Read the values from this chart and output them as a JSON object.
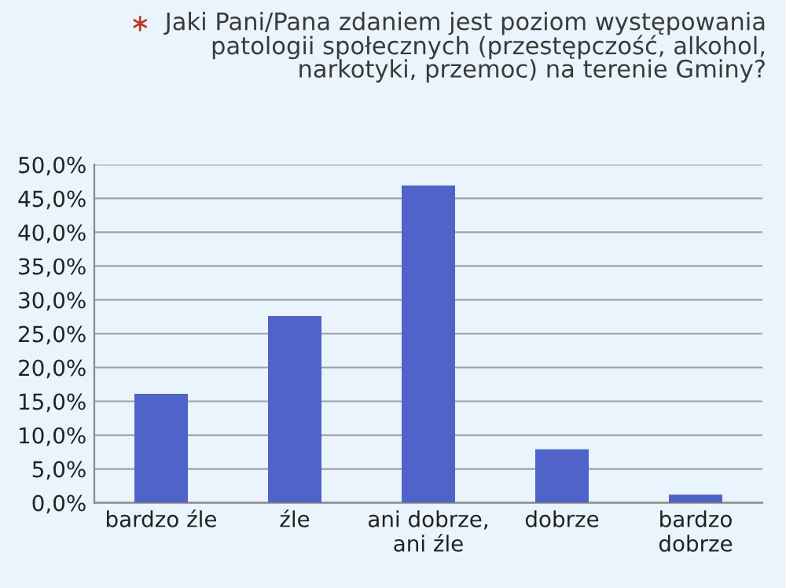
{
  "chart_data": {
    "type": "bar",
    "title": "Jaki Pani/Pana zdaniem jest poziom występowania\npatologii społecznych (przestępczość, alkohol,\nnarkotyki, przemoc) na terenie Gminy?",
    "categories": [
      "bardzo źle",
      "źle",
      "ani dobrze,\nani źle",
      "dobrze",
      "bardzo\ndobrze"
    ],
    "values": [
      16.1,
      27.6,
      46.9,
      7.9,
      1.2
    ],
    "color": "#4f63c8",
    "ylim": [
      0,
      50
    ],
    "yticks": [
      {
        "value": 0,
        "label": "0,0%"
      },
      {
        "value": 5,
        "label": "5,0%"
      },
      {
        "value": 10,
        "label": "10,0%"
      },
      {
        "value": 15,
        "label": "15,0%"
      },
      {
        "value": 20,
        "label": "20,0%"
      },
      {
        "value": 25,
        "label": "25,0%"
      },
      {
        "value": 30,
        "label": "30,0%"
      },
      {
        "value": 35,
        "label": "35,0%"
      },
      {
        "value": 40,
        "label": "40,0%"
      },
      {
        "value": 45,
        "label": "45,0%"
      },
      {
        "value": 50,
        "label": "50,0%"
      }
    ],
    "grid": "y",
    "legend": false
  }
}
